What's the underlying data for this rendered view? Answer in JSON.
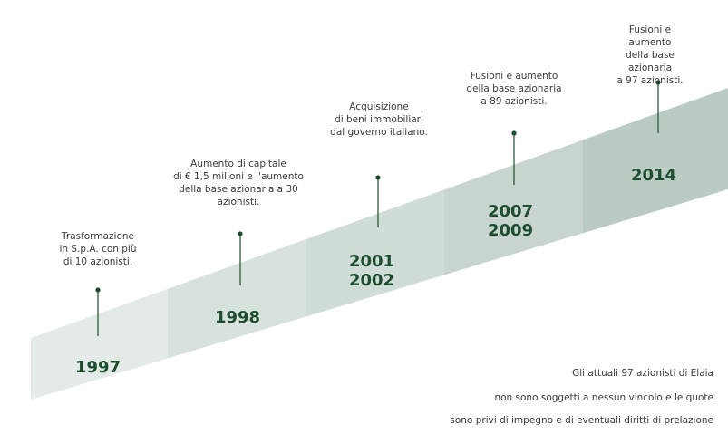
{
  "palette": {
    "segments": [
      "#e3eae7",
      "#d8e2dd",
      "#d0dcd6",
      "#c8d5cf",
      "#bacbc3"
    ],
    "connector": "#1d4d2f",
    "year_text": "#1d4d2f",
    "body_text": "#3b3b3b"
  },
  "milestones": [
    {
      "year_lines": [
        "1997"
      ],
      "desc_lines": [
        "Trasformazione",
        "in S.p.A. con più",
        "di 10 azionisti."
      ]
    },
    {
      "year_lines": [
        "1998"
      ],
      "desc_lines": [
        "Aumento di capitale",
        "di € 1,5 milioni e l'aumento",
        "della base azionaria a 30",
        "azionisti."
      ]
    },
    {
      "year_lines": [
        "2001",
        "2002"
      ],
      "desc_lines": [
        "Acquisizione",
        "di beni immobiliari",
        "dal governo italiano."
      ]
    },
    {
      "year_lines": [
        "2007",
        "2009"
      ],
      "desc_lines": [
        "Fusioni e aumento",
        "della base azionaria",
        "a 89 azionisti."
      ]
    },
    {
      "year_lines": [
        "2014"
      ],
      "desc_lines": [
        "Fusioni e aumento",
        "della base azionaria",
        "a 97 azionisti."
      ]
    }
  ],
  "footnote": {
    "lines": [
      "Gli attuali 97 azionisti di Elaia",
      "non sono soggetti a nessun vincolo e le quote",
      "sono privi di impegno e di eventuali diritti di prelazione"
    ]
  }
}
